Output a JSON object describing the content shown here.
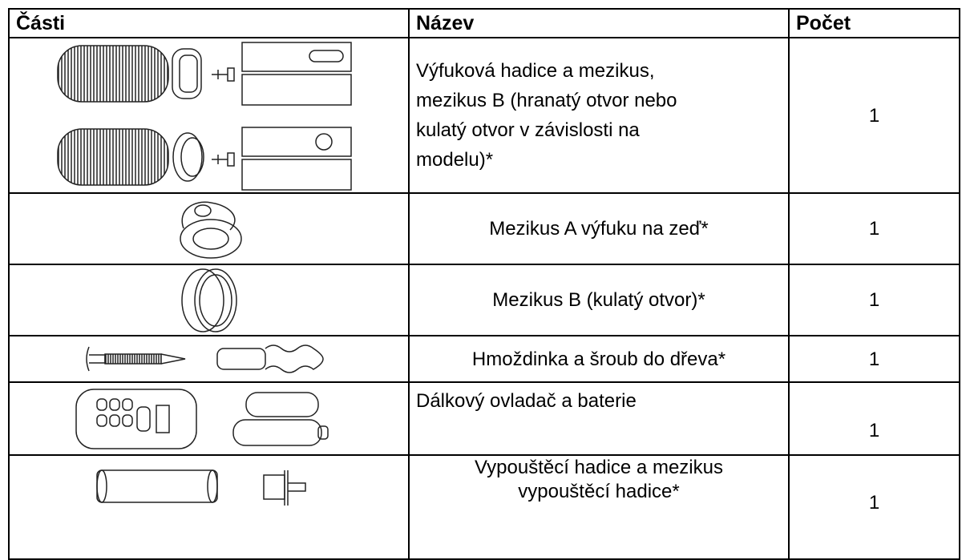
{
  "table": {
    "header": [
      "Části",
      "Název",
      "Počet"
    ],
    "rows": [
      {
        "name": [
          "Výfuková hadice a mezikus,",
          "mezikus B (hranatý otvor nebo",
          "kulatý otvor v závislosti na",
          "modelu)*"
        ],
        "count": "1"
      },
      {
        "name": [
          "Mezikus A výfuku na zeď*"
        ],
        "count": "1"
      },
      {
        "name": [
          "Mezikus B (kulatý otvor)*"
        ],
        "count": "1"
      },
      {
        "name": [
          "Hmoždinka a šroub do dřeva*"
        ],
        "count": "1"
      },
      {
        "name": [
          "Dálkový ovladač a baterie"
        ],
        "count": "1"
      },
      {
        "name": [
          "Vypouštěcí hadice a mezikus",
          "vypouštěcí hadice*"
        ],
        "count": "1"
      }
    ]
  }
}
